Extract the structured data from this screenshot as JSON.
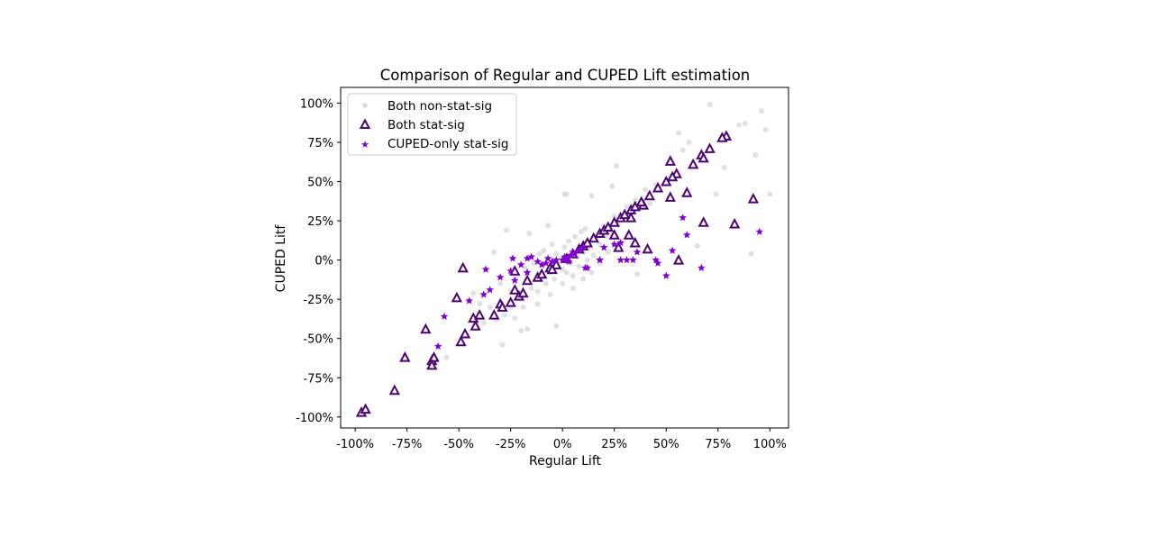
{
  "chart_data": {
    "type": "scatter",
    "title": "Comparison of Regular and CUPED Lift estimation",
    "xlabel": "Regular Lift",
    "ylabel": "CUPED Litf",
    "xlim": [
      -107,
      109
    ],
    "ylim": [
      -107,
      110
    ],
    "xticks": [
      -100,
      -75,
      -50,
      -25,
      0,
      25,
      50,
      75,
      100
    ],
    "yticks": [
      -100,
      -75,
      -50,
      -25,
      0,
      25,
      50,
      75,
      100
    ],
    "xtick_labels": [
      "-100%",
      "-75%",
      "-50%",
      "-25%",
      "0%",
      "25%",
      "50%",
      "75%",
      "100%"
    ],
    "ytick_labels": [
      "-100%",
      "-75%",
      "-50%",
      "-25%",
      "0%",
      "25%",
      "50%",
      "75%",
      "100%"
    ],
    "grid": false,
    "legend_position": "top-left",
    "series": [
      {
        "name": "Both non-stat-sig",
        "marker": "circle",
        "color": "#d9d9d9",
        "points": [
          [
            71,
            99
          ],
          [
            96,
            95
          ],
          [
            98,
            83
          ],
          [
            88,
            87
          ],
          [
            85,
            86
          ],
          [
            56,
            81
          ],
          [
            61,
            75
          ],
          [
            58,
            70
          ],
          [
            26,
            60
          ],
          [
            24,
            47
          ],
          [
            2,
            42
          ],
          [
            14,
            41
          ],
          [
            78,
            59
          ],
          [
            93,
            67
          ],
          [
            100,
            42
          ],
          [
            74,
            42
          ],
          [
            91,
            4
          ],
          [
            65,
            9
          ],
          [
            36,
            -9
          ],
          [
            -3,
            -42
          ],
          [
            -29,
            -54
          ],
          [
            -56,
            -62
          ],
          [
            -43,
            -21
          ],
          [
            -20,
            -45
          ],
          [
            -17,
            -44
          ],
          [
            -23,
            -37
          ],
          [
            -27,
            19
          ],
          [
            -7,
            22
          ],
          [
            -16,
            17
          ],
          [
            -33,
            5
          ],
          [
            1,
            42
          ],
          [
            -30,
            -15
          ],
          [
            -25,
            -20
          ],
          [
            -22,
            -10
          ],
          [
            -20,
            -25
          ],
          [
            -18,
            -5
          ],
          [
            -15,
            -18
          ],
          [
            -12,
            -20
          ],
          [
            -10,
            -12
          ],
          [
            -8,
            -15
          ],
          [
            -6,
            -8
          ],
          [
            -4,
            -12
          ],
          [
            -2,
            -3
          ],
          [
            0,
            -6
          ],
          [
            2,
            -8
          ],
          [
            4,
            -2
          ],
          [
            5,
            -10
          ],
          [
            7,
            2
          ],
          [
            8,
            -4
          ],
          [
            10,
            5
          ],
          [
            12,
            0
          ],
          [
            13,
            8
          ],
          [
            15,
            3
          ],
          [
            16,
            14
          ],
          [
            18,
            10
          ],
          [
            20,
            22
          ],
          [
            21,
            15
          ],
          [
            23,
            18
          ],
          [
            25,
            28
          ],
          [
            27,
            22
          ],
          [
            29,
            26
          ],
          [
            31,
            34
          ],
          [
            33,
            30
          ],
          [
            35,
            38
          ],
          [
            38,
            33
          ],
          [
            40,
            45
          ],
          [
            42,
            36
          ],
          [
            45,
            48
          ],
          [
            -14,
            -2
          ],
          [
            -11,
            4
          ],
          [
            -9,
            6
          ],
          [
            -5,
            10
          ],
          [
            -3,
            4
          ],
          [
            1,
            8
          ],
          [
            3,
            12
          ],
          [
            6,
            15
          ],
          [
            9,
            18
          ],
          [
            11,
            20
          ],
          [
            -25,
            -30
          ],
          [
            -28,
            -35
          ],
          [
            -32,
            -38
          ],
          [
            -35,
            -30
          ],
          [
            -38,
            -40
          ],
          [
            -40,
            -28
          ],
          [
            -19,
            -30
          ],
          [
            -12,
            -28
          ],
          [
            -6,
            -22
          ],
          [
            0,
            -15
          ],
          [
            5,
            -18
          ],
          [
            10,
            -12
          ],
          [
            14,
            -8
          ],
          [
            18,
            -2
          ],
          [
            22,
            5
          ]
        ]
      },
      {
        "name": "Both stat-sig",
        "marker": "triangle",
        "color": "#4c0472",
        "points": [
          [
            -97,
            -97
          ],
          [
            -95,
            -95
          ],
          [
            -81,
            -83
          ],
          [
            -76,
            -62
          ],
          [
            -66,
            -44
          ],
          [
            -63,
            -64
          ],
          [
            -62,
            -62
          ],
          [
            -63,
            -67
          ],
          [
            -48,
            -5
          ],
          [
            -51,
            -24
          ],
          [
            -49,
            -52
          ],
          [
            -47,
            -47
          ],
          [
            -43,
            -37
          ],
          [
            -42,
            -42
          ],
          [
            -40,
            -35
          ],
          [
            -33,
            -35
          ],
          [
            -30,
            -28
          ],
          [
            -29,
            -30
          ],
          [
            -25,
            -27
          ],
          [
            -23,
            -19
          ],
          [
            -21,
            -23
          ],
          [
            -19,
            -21
          ],
          [
            -17,
            -13
          ],
          [
            -23,
            -7
          ],
          [
            -12,
            -11
          ],
          [
            -10,
            -9
          ],
          [
            -6,
            -5
          ],
          [
            79,
            79
          ],
          [
            77,
            78
          ],
          [
            71,
            71
          ],
          [
            67,
            67
          ],
          [
            68,
            65
          ],
          [
            63,
            61
          ],
          [
            52,
            63
          ],
          [
            55,
            55
          ],
          [
            53,
            53
          ],
          [
            50,
            50
          ],
          [
            46,
            46
          ],
          [
            60,
            43
          ],
          [
            52,
            40
          ],
          [
            92,
            39
          ],
          [
            68,
            24
          ],
          [
            83,
            23
          ],
          [
            56,
            0
          ],
          [
            41,
            7
          ],
          [
            35,
            11
          ],
          [
            32,
            16
          ],
          [
            27,
            8
          ],
          [
            25,
            16
          ],
          [
            42,
            41
          ],
          [
            39,
            35
          ],
          [
            33,
            27
          ],
          [
            5,
            4
          ],
          [
            8,
            7
          ],
          [
            10,
            9
          ],
          [
            12,
            11
          ],
          [
            15,
            14
          ],
          [
            18,
            17
          ],
          [
            20,
            19
          ],
          [
            22,
            21
          ],
          [
            25,
            24
          ],
          [
            28,
            27
          ],
          [
            30,
            29
          ],
          [
            33,
            32
          ],
          [
            35,
            34
          ],
          [
            38,
            37
          ],
          [
            -3,
            -3
          ],
          [
            -5,
            -6
          ],
          [
            2,
            1
          ]
        ]
      },
      {
        "name": "CUPED-only stat-sig",
        "marker": "star",
        "color": "#8200d4",
        "points": [
          [
            58,
            27
          ],
          [
            60,
            16
          ],
          [
            95,
            18
          ],
          [
            53,
            6
          ],
          [
            67,
            -5
          ],
          [
            50,
            -10
          ],
          [
            45,
            0
          ],
          [
            46,
            -2
          ],
          [
            36,
            5
          ],
          [
            34,
            0
          ],
          [
            31,
            0
          ],
          [
            28,
            0
          ],
          [
            18,
            0
          ],
          [
            11,
            -5
          ],
          [
            20,
            8
          ],
          [
            28,
            11
          ],
          [
            25,
            10
          ],
          [
            -37,
            -6
          ],
          [
            -45,
            -26
          ],
          [
            -57,
            -36
          ],
          [
            -60,
            -55
          ],
          [
            -38,
            -22
          ],
          [
            -35,
            -19
          ],
          [
            -30,
            -11
          ],
          [
            -24,
            1
          ],
          [
            -20,
            -3
          ],
          [
            -17,
            1
          ],
          [
            -23,
            -13
          ],
          [
            -17,
            -8
          ],
          [
            -25,
            -7
          ],
          [
            12,
            -5
          ],
          [
            18,
            0
          ],
          [
            -10,
            -3
          ],
          [
            -8,
            -2
          ],
          [
            -5,
            -1
          ],
          [
            -3,
            0
          ],
          [
            0,
            0
          ],
          [
            2,
            1
          ],
          [
            4,
            3
          ],
          [
            6,
            4
          ],
          [
            8,
            6
          ],
          [
            10,
            8
          ],
          [
            -12,
            -1
          ],
          [
            -15,
            2
          ],
          [
            -7,
            1
          ],
          [
            3,
            -1
          ],
          [
            1,
            2
          ],
          [
            5,
            5
          ]
        ]
      }
    ]
  }
}
